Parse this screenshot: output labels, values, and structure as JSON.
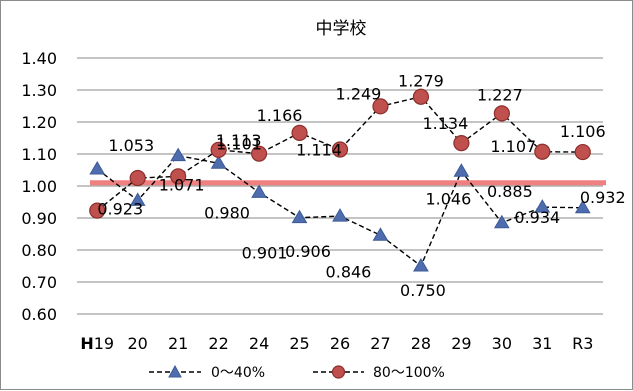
{
  "chart_data": {
    "type": "line",
    "title": "中学校",
    "xlabel": "",
    "ylabel": "",
    "categories": [
      "H19",
      "20",
      "21",
      "22",
      "24",
      "25",
      "26",
      "27",
      "28",
      "29",
      "30",
      "31",
      "R3"
    ],
    "ylim": [
      0.6,
      1.4
    ],
    "yticks": [
      "0.60",
      "0.70",
      "0.80",
      "0.90",
      "1.00",
      "1.10",
      "1.20",
      "1.30",
      "1.40"
    ],
    "grid": true,
    "reference_line": {
      "value": 1.01,
      "color": "#f08080"
    },
    "legend_position": "bottom",
    "series": [
      {
        "name": "0～40%",
        "marker": "triangle",
        "color": "#4f6dae",
        "values": [
          1.053,
          0.955,
          1.095,
          1.071,
          0.98,
          0.901,
          0.906,
          0.846,
          0.75,
          1.046,
          0.885,
          0.934,
          0.932
        ],
        "labels": [
          "1.053",
          null,
          null,
          "1.071",
          "0.980",
          "0.901",
          "0.906",
          "0.846",
          "0.750",
          "1.046",
          "0.885",
          "0.934",
          "0.932"
        ]
      },
      {
        "name": "80～100%",
        "marker": "circle",
        "color": "#c0504d",
        "values": [
          0.923,
          1.025,
          1.03,
          1.113,
          1.101,
          1.166,
          1.114,
          1.249,
          1.279,
          1.134,
          1.227,
          1.107,
          1.106
        ],
        "labels": [
          "0.923",
          null,
          null,
          "1.113",
          "1.101",
          "1.166",
          "1.114",
          "1.249",
          "1.279",
          "1.134",
          "1.227",
          "1.107",
          "1.106"
        ]
      }
    ]
  }
}
